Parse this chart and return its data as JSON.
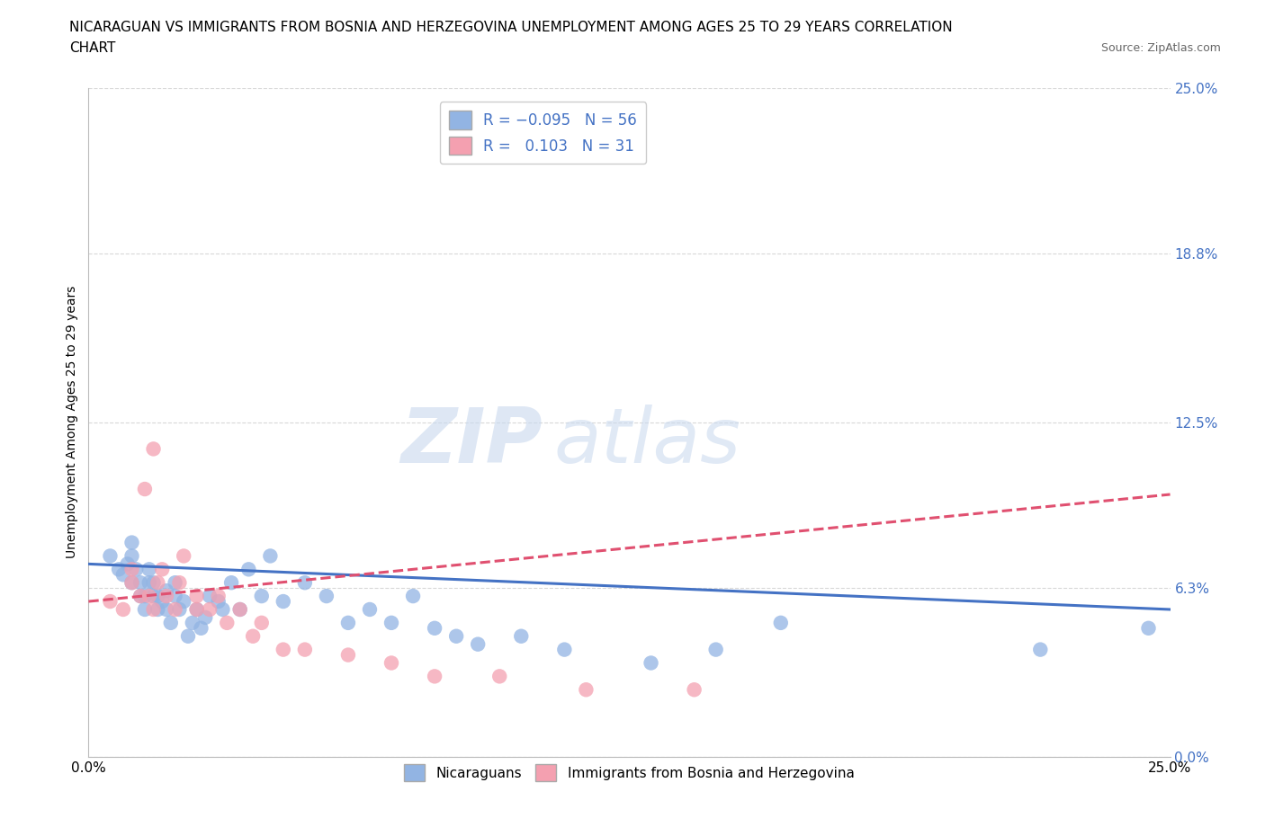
{
  "title_line1": "NICARAGUAN VS IMMIGRANTS FROM BOSNIA AND HERZEGOVINA UNEMPLOYMENT AMONG AGES 25 TO 29 YEARS CORRELATION",
  "title_line2": "CHART",
  "source_text": "Source: ZipAtlas.com",
  "ylabel": "Unemployment Among Ages 25 to 29 years",
  "xmin": 0.0,
  "xmax": 0.25,
  "ymin": 0.0,
  "ymax": 0.25,
  "yticks": [
    0.0,
    0.063,
    0.125,
    0.188,
    0.25
  ],
  "ytick_labels": [
    "0.0%",
    "6.3%",
    "12.5%",
    "18.8%",
    "25.0%"
  ],
  "xtick_labels": [
    "0.0%",
    "25.0%"
  ],
  "blue_scatter_x": [
    0.005,
    0.007,
    0.008,
    0.009,
    0.01,
    0.01,
    0.01,
    0.011,
    0.012,
    0.012,
    0.013,
    0.013,
    0.014,
    0.014,
    0.015,
    0.015,
    0.016,
    0.016,
    0.017,
    0.018,
    0.018,
    0.019,
    0.02,
    0.02,
    0.021,
    0.022,
    0.023,
    0.024,
    0.025,
    0.026,
    0.027,
    0.028,
    0.03,
    0.031,
    0.033,
    0.035,
    0.037,
    0.04,
    0.042,
    0.045,
    0.05,
    0.055,
    0.06,
    0.065,
    0.07,
    0.075,
    0.08,
    0.085,
    0.09,
    0.1,
    0.11,
    0.13,
    0.145,
    0.16,
    0.22,
    0.245
  ],
  "blue_scatter_y": [
    0.075,
    0.07,
    0.068,
    0.072,
    0.08,
    0.075,
    0.065,
    0.07,
    0.06,
    0.065,
    0.055,
    0.06,
    0.065,
    0.07,
    0.06,
    0.065,
    0.055,
    0.06,
    0.058,
    0.055,
    0.062,
    0.05,
    0.06,
    0.065,
    0.055,
    0.058,
    0.045,
    0.05,
    0.055,
    0.048,
    0.052,
    0.06,
    0.058,
    0.055,
    0.065,
    0.055,
    0.07,
    0.06,
    0.075,
    0.058,
    0.065,
    0.06,
    0.05,
    0.055,
    0.05,
    0.06,
    0.048,
    0.045,
    0.042,
    0.045,
    0.04,
    0.035,
    0.04,
    0.05,
    0.04,
    0.048
  ],
  "pink_scatter_x": [
    0.005,
    0.008,
    0.01,
    0.01,
    0.012,
    0.013,
    0.014,
    0.015,
    0.015,
    0.016,
    0.017,
    0.018,
    0.02,
    0.021,
    0.022,
    0.025,
    0.025,
    0.028,
    0.03,
    0.032,
    0.035,
    0.038,
    0.04,
    0.045,
    0.05,
    0.06,
    0.07,
    0.08,
    0.095,
    0.115,
    0.14
  ],
  "pink_scatter_y": [
    0.058,
    0.055,
    0.07,
    0.065,
    0.06,
    0.1,
    0.06,
    0.055,
    0.115,
    0.065,
    0.07,
    0.06,
    0.055,
    0.065,
    0.075,
    0.06,
    0.055,
    0.055,
    0.06,
    0.05,
    0.055,
    0.045,
    0.05,
    0.04,
    0.04,
    0.038,
    0.035,
    0.03,
    0.03,
    0.025,
    0.025
  ],
  "blue_line_x": [
    0.0,
    0.25
  ],
  "blue_line_y": [
    0.072,
    0.055
  ],
  "pink_line_x": [
    0.0,
    0.25
  ],
  "pink_line_y": [
    0.058,
    0.098
  ],
  "scatter_color_blue": "#92b4e3",
  "scatter_color_pink": "#f4a0b0",
  "line_color_blue": "#4472c4",
  "line_color_pink": "#e05070",
  "watermark_zip": "ZIP",
  "watermark_atlas": "atlas",
  "background_color": "#ffffff",
  "grid_color": "#d8d8d8",
  "title_fontsize": 11,
  "axis_label_fontsize": 10,
  "tick_fontsize": 11,
  "source_fontsize": 9
}
